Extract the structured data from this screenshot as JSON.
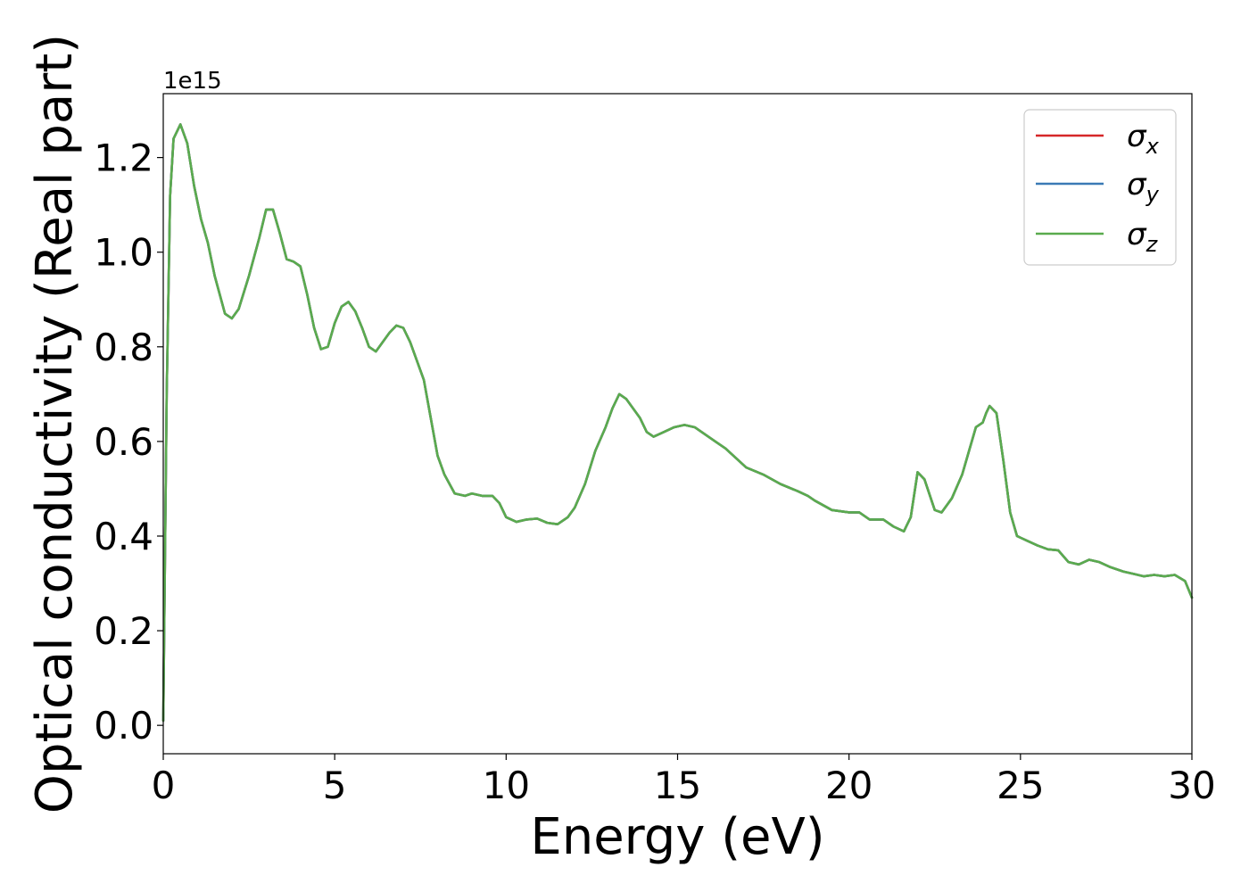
{
  "chart_data": {
    "type": "line",
    "xlabel": "Energy (eV)",
    "ylabel": "Optical conductivity (Real part)",
    "y_offset_label": "1e15",
    "xlim": [
      0,
      30
    ],
    "ylim": [
      -0.06,
      1.335
    ],
    "x_ticks": [
      {
        "value": 0,
        "label": "0"
      },
      {
        "value": 5,
        "label": "5"
      },
      {
        "value": 10,
        "label": "10"
      },
      {
        "value": 15,
        "label": "15"
      },
      {
        "value": 20,
        "label": "20"
      },
      {
        "value": 25,
        "label": "25"
      },
      {
        "value": 30,
        "label": "30"
      }
    ],
    "y_ticks": [
      {
        "value": 0.0,
        "label": "0.0"
      },
      {
        "value": 0.2,
        "label": "0.2"
      },
      {
        "value": 0.4,
        "label": "0.4"
      },
      {
        "value": 0.6,
        "label": "0.6"
      },
      {
        "value": 0.8,
        "label": "0.8"
      },
      {
        "value": 1.0,
        "label": "1.0"
      },
      {
        "value": 1.2,
        "label": "1.2"
      }
    ],
    "grid": false,
    "legend_position": "top-right",
    "x": [
      0.0,
      0.1,
      0.2,
      0.3,
      0.5,
      0.7,
      0.9,
      1.1,
      1.3,
      1.5,
      1.8,
      2.0,
      2.2,
      2.5,
      2.8,
      3.0,
      3.2,
      3.4,
      3.6,
      3.8,
      4.0,
      4.2,
      4.4,
      4.6,
      4.8,
      5.0,
      5.2,
      5.4,
      5.6,
      5.8,
      6.0,
      6.2,
      6.4,
      6.6,
      6.8,
      7.0,
      7.2,
      7.4,
      7.6,
      7.8,
      8.0,
      8.2,
      8.5,
      8.8,
      9.0,
      9.3,
      9.6,
      9.8,
      10.0,
      10.3,
      10.6,
      10.9,
      11.2,
      11.5,
      11.8,
      12.0,
      12.3,
      12.6,
      12.9,
      13.1,
      13.3,
      13.5,
      13.7,
      13.9,
      14.1,
      14.3,
      14.6,
      14.9,
      15.2,
      15.5,
      15.8,
      16.1,
      16.4,
      16.7,
      17.0,
      17.5,
      18.0,
      18.5,
      18.8,
      19.0,
      19.5,
      20.0,
      20.3,
      20.6,
      21.0,
      21.3,
      21.6,
      21.8,
      22.0,
      22.2,
      22.5,
      22.7,
      23.0,
      23.3,
      23.5,
      23.7,
      23.9,
      24.0,
      24.1,
      24.3,
      24.5,
      24.7,
      24.9,
      25.2,
      25.5,
      25.8,
      26.1,
      26.4,
      26.7,
      27.0,
      27.3,
      27.6,
      28.0,
      28.3,
      28.6,
      28.9,
      29.2,
      29.5,
      29.8,
      30.0
    ],
    "series": [
      {
        "name": "σx",
        "color": "#d62728",
        "values": [
          0.01,
          0.7,
          1.12,
          1.24,
          1.27,
          1.23,
          1.14,
          1.07,
          1.02,
          0.95,
          0.87,
          0.86,
          0.88,
          0.95,
          1.03,
          1.09,
          1.09,
          1.04,
          0.985,
          0.98,
          0.97,
          0.91,
          0.84,
          0.795,
          0.8,
          0.85,
          0.885,
          0.895,
          0.875,
          0.84,
          0.8,
          0.79,
          0.81,
          0.83,
          0.845,
          0.84,
          0.81,
          0.77,
          0.73,
          0.65,
          0.57,
          0.53,
          0.49,
          0.485,
          0.49,
          0.485,
          0.485,
          0.47,
          0.44,
          0.43,
          0.435,
          0.437,
          0.428,
          0.425,
          0.44,
          0.46,
          0.51,
          0.58,
          0.63,
          0.67,
          0.7,
          0.69,
          0.67,
          0.65,
          0.62,
          0.61,
          0.62,
          0.63,
          0.635,
          0.63,
          0.615,
          0.6,
          0.585,
          0.565,
          0.545,
          0.53,
          0.51,
          0.495,
          0.485,
          0.475,
          0.455,
          0.45,
          0.45,
          0.435,
          0.435,
          0.42,
          0.41,
          0.44,
          0.535,
          0.52,
          0.455,
          0.45,
          0.48,
          0.53,
          0.58,
          0.63,
          0.64,
          0.66,
          0.675,
          0.66,
          0.56,
          0.45,
          0.4,
          0.39,
          0.38,
          0.372,
          0.37,
          0.345,
          0.34,
          0.35,
          0.345,
          0.335,
          0.325,
          0.32,
          0.315,
          0.318,
          0.315,
          0.318,
          0.305,
          0.27
        ]
      },
      {
        "name": "σy",
        "color": "#3a7ab5",
        "values": [
          0.01,
          0.7,
          1.12,
          1.24,
          1.27,
          1.23,
          1.14,
          1.07,
          1.02,
          0.95,
          0.87,
          0.86,
          0.88,
          0.95,
          1.03,
          1.09,
          1.09,
          1.04,
          0.985,
          0.98,
          0.97,
          0.91,
          0.84,
          0.795,
          0.8,
          0.85,
          0.885,
          0.895,
          0.875,
          0.84,
          0.8,
          0.79,
          0.81,
          0.83,
          0.845,
          0.84,
          0.81,
          0.77,
          0.73,
          0.65,
          0.57,
          0.53,
          0.49,
          0.485,
          0.49,
          0.485,
          0.485,
          0.47,
          0.44,
          0.43,
          0.435,
          0.437,
          0.428,
          0.425,
          0.44,
          0.46,
          0.51,
          0.58,
          0.63,
          0.67,
          0.7,
          0.69,
          0.67,
          0.65,
          0.62,
          0.61,
          0.62,
          0.63,
          0.635,
          0.63,
          0.615,
          0.6,
          0.585,
          0.565,
          0.545,
          0.53,
          0.51,
          0.495,
          0.485,
          0.475,
          0.455,
          0.45,
          0.45,
          0.435,
          0.435,
          0.42,
          0.41,
          0.44,
          0.535,
          0.52,
          0.455,
          0.45,
          0.48,
          0.53,
          0.58,
          0.63,
          0.64,
          0.66,
          0.675,
          0.66,
          0.56,
          0.45,
          0.4,
          0.39,
          0.38,
          0.372,
          0.37,
          0.345,
          0.34,
          0.35,
          0.345,
          0.335,
          0.325,
          0.32,
          0.315,
          0.318,
          0.315,
          0.318,
          0.305,
          0.27
        ]
      },
      {
        "name": "σz",
        "color": "#5aab4e",
        "values": [
          0.01,
          0.7,
          1.12,
          1.24,
          1.27,
          1.23,
          1.14,
          1.07,
          1.02,
          0.95,
          0.87,
          0.86,
          0.88,
          0.95,
          1.03,
          1.09,
          1.09,
          1.04,
          0.985,
          0.98,
          0.97,
          0.91,
          0.84,
          0.795,
          0.8,
          0.85,
          0.885,
          0.895,
          0.875,
          0.84,
          0.8,
          0.79,
          0.81,
          0.83,
          0.845,
          0.84,
          0.81,
          0.77,
          0.73,
          0.65,
          0.57,
          0.53,
          0.49,
          0.485,
          0.49,
          0.485,
          0.485,
          0.47,
          0.44,
          0.43,
          0.435,
          0.437,
          0.428,
          0.425,
          0.44,
          0.46,
          0.51,
          0.58,
          0.63,
          0.67,
          0.7,
          0.69,
          0.67,
          0.65,
          0.62,
          0.61,
          0.62,
          0.63,
          0.635,
          0.63,
          0.615,
          0.6,
          0.585,
          0.565,
          0.545,
          0.53,
          0.51,
          0.495,
          0.485,
          0.475,
          0.455,
          0.45,
          0.45,
          0.435,
          0.435,
          0.42,
          0.41,
          0.44,
          0.535,
          0.52,
          0.455,
          0.45,
          0.48,
          0.53,
          0.58,
          0.63,
          0.64,
          0.66,
          0.675,
          0.66,
          0.56,
          0.45,
          0.4,
          0.39,
          0.38,
          0.372,
          0.37,
          0.345,
          0.34,
          0.35,
          0.345,
          0.335,
          0.325,
          0.32,
          0.315,
          0.318,
          0.315,
          0.318,
          0.305,
          0.27
        ]
      }
    ]
  }
}
